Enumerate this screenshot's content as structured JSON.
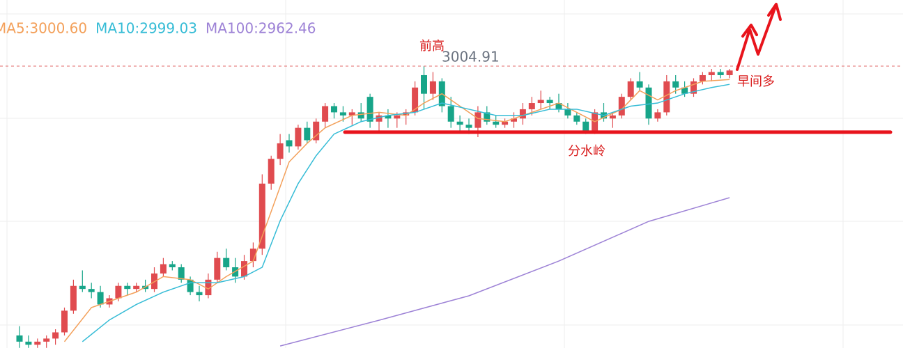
{
  "chart_data": {
    "type": "candlestick",
    "ylim": [
      2913.95,
      3026.25
    ],
    "up_color": "#e04b4f",
    "down_color": "#17a589",
    "ohlc": [
      [
        2918,
        2921,
        2914,
        2916
      ],
      [
        2916,
        2918,
        2914,
        2915
      ],
      [
        2915,
        2917,
        2914,
        2916
      ],
      [
        2916,
        2918,
        2914,
        2917
      ],
      [
        2917,
        2920,
        2915,
        2919
      ],
      [
        2919,
        2927,
        2918,
        2926
      ],
      [
        2926,
        2936,
        2925,
        2934
      ],
      [
        2934,
        2939,
        2932,
        2933
      ],
      [
        2933,
        2935,
        2930,
        2932
      ],
      [
        2932,
        2934,
        2927,
        2928
      ],
      [
        2928,
        2931,
        2927,
        2930
      ],
      [
        2930,
        2935,
        2929,
        2934
      ],
      [
        2934,
        2935,
        2931,
        2933
      ],
      [
        2933,
        2935,
        2932,
        2934
      ],
      [
        2934,
        2936,
        2932,
        2933
      ],
      [
        2933,
        2940,
        2932,
        2938
      ],
      [
        2938,
        2943,
        2937,
        2941
      ],
      [
        2941,
        2942,
        2939,
        2940
      ],
      [
        2940,
        2941,
        2935,
        2936
      ],
      [
        2936,
        2937,
        2931,
        2932
      ],
      [
        2932,
        2934,
        2929,
        2931
      ],
      [
        2931,
        2938,
        2930,
        2936
      ],
      [
        2936,
        2945,
        2935,
        2943
      ],
      [
        2943,
        2946,
        2939,
        2940
      ],
      [
        2940,
        2943,
        2935,
        2937
      ],
      [
        2937,
        2944,
        2936,
        2942
      ],
      [
        2942,
        2948,
        2940,
        2946
      ],
      [
        2946,
        2970,
        2944,
        2967
      ],
      [
        2967,
        2976,
        2965,
        2975
      ],
      [
        2975,
        2983,
        2973,
        2980
      ],
      [
        2981,
        2983,
        2977,
        2979
      ],
      [
        2979,
        2986,
        2978,
        2985
      ],
      [
        2985,
        2987,
        2980,
        2981
      ],
      [
        2981,
        2988,
        2980,
        2987
      ],
      [
        2987,
        2993,
        2985,
        2992
      ],
      [
        2992,
        2993,
        2988,
        2990
      ],
      [
        2990,
        2992,
        2987,
        2989
      ],
      [
        2989,
        2991,
        2986,
        2990
      ],
      [
        2990,
        2993,
        2987,
        2988
      ],
      [
        2995,
        2996,
        2985,
        2987
      ],
      [
        2987,
        2990,
        2984,
        2989
      ],
      [
        2989,
        2991,
        2985,
        2988
      ],
      [
        2988,
        2990,
        2985,
        2989
      ],
      [
        2989,
        2991,
        2986,
        2990
      ],
      [
        2990,
        3000,
        2989,
        2998
      ],
      [
        3002,
        3004.91,
        2991,
        2996
      ],
      [
        2996,
        3003,
        2994,
        3000
      ],
      [
        3000,
        3001,
        2990,
        2992
      ],
      [
        2992,
        2995,
        2985,
        2987
      ],
      [
        2987,
        2989,
        2984,
        2986
      ],
      [
        2986,
        2988,
        2983,
        2985
      ],
      [
        2985,
        2992,
        2982,
        2990
      ],
      [
        2990,
        2992,
        2986,
        2987
      ],
      [
        2987,
        2989,
        2985,
        2986
      ],
      [
        2986,
        2988,
        2985,
        2987
      ],
      [
        2987,
        2990,
        2985,
        2988
      ],
      [
        2988,
        2993,
        2986,
        2991
      ],
      [
        2991,
        2995,
        2989,
        2993
      ],
      [
        2993,
        2997,
        2991,
        2994
      ],
      [
        2994,
        2995,
        2991,
        2993
      ],
      [
        2993,
        2996,
        2990,
        2991
      ],
      [
        2991,
        2993,
        2988,
        2989
      ],
      [
        2989,
        2990,
        2986,
        2987
      ],
      [
        2987,
        2988,
        2983,
        2984
      ],
      [
        2984,
        2991,
        2983,
        2990
      ],
      [
        2990,
        2993,
        2987,
        2988
      ],
      [
        2988,
        2990,
        2985,
        2989
      ],
      [
        2989,
        2996,
        2988,
        2995
      ],
      [
        2995,
        3001,
        2994,
        3000
      ],
      [
        3000,
        3003,
        2997,
        2998
      ],
      [
        2998,
        2999,
        2986,
        2988
      ],
      [
        2988,
        2991,
        2987,
        2990
      ],
      [
        2990,
        3002,
        2989,
        3000
      ],
      [
        3000,
        3002,
        2996,
        2998
      ],
      [
        2998,
        3000,
        2995,
        2996
      ],
      [
        2996,
        3001,
        2995,
        3000
      ],
      [
        3000,
        3003,
        2999,
        3002
      ],
      [
        3002,
        3004,
        3000,
        3003
      ],
      [
        3003,
        3004,
        3001,
        3002
      ],
      [
        3002,
        3004,
        3001,
        3003.5
      ]
    ],
    "series": [
      {
        "name": "MA5:3000.60",
        "color": "#f3a05a",
        "x": [
          5,
          8,
          10,
          13,
          16,
          19,
          21,
          23,
          26,
          28,
          30,
          32,
          34,
          37,
          40,
          43,
          45,
          47,
          49,
          51,
          54,
          57,
          60,
          62,
          64,
          67,
          69,
          71,
          73,
          76,
          79
        ],
        "values": [
          2916,
          2927,
          2929,
          2932,
          2937,
          2936,
          2933,
          2937,
          2942,
          2958,
          2974,
          2980,
          2985,
          2989,
          2990,
          2989,
          2993,
          2996,
          2992,
          2988,
          2987,
          2990,
          2993,
          2990,
          2987,
          2991,
          2997,
          2994,
          2997,
          3000,
          3000.6
        ]
      },
      {
        "name": "MA10:2999.03",
        "color": "#36bcd6",
        "x": [
          7,
          10,
          13,
          16,
          19,
          22,
          25,
          27,
          29,
          31,
          33,
          35,
          38,
          41,
          44,
          47,
          50,
          53,
          56,
          59,
          62,
          65,
          68,
          71,
          74,
          77,
          79
        ],
        "values": [
          2916,
          2923,
          2928,
          2932,
          2935,
          2935,
          2937,
          2940,
          2955,
          2967,
          2976,
          2983,
          2987,
          2989,
          2990,
          2993,
          2991,
          2989,
          2989,
          2991,
          2991,
          2989,
          2992,
          2993,
          2996,
          2998,
          2999.03
        ]
      },
      {
        "name": "MA100:2962.46",
        "color": "#9d82d6",
        "x": [
          29,
          40,
          50,
          60,
          70,
          79
        ],
        "values": [
          2914.6,
          2922.9,
          2930.8,
          2942.0,
          2954.8,
          2962.46
        ]
      }
    ],
    "price_line": 3004.91,
    "peak_label": "前高",
    "support": {
      "label": "分水岭",
      "value": 2983.6
    },
    "note": "早间多"
  }
}
